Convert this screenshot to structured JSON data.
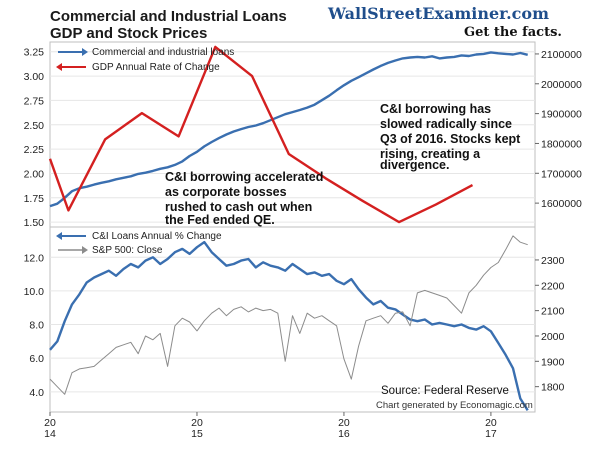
{
  "header": {
    "title_line1": "Commercial and Industrial Loans",
    "title_line2": "GDP and Stock Prices",
    "brand": "WallStreetExaminer.com",
    "tagline": "Get the facts."
  },
  "colors": {
    "blue": "#3a6fb0",
    "red": "#d42020",
    "gray": "#8c8c8c",
    "frame": "#bfbfbf"
  },
  "chart_data": [
    {
      "type": "line",
      "legend": [
        "Commercial and industrial loans",
        "GDP Annual Rate of Change"
      ],
      "left_axis": {
        "ylim": [
          1.45,
          3.35
        ],
        "ticks": [
          "1.50",
          "1.75",
          "2.00",
          "2.25",
          "2.50",
          "2.75",
          "3.00",
          "3.25"
        ]
      },
      "right_axis": {
        "ylim": [
          1520000,
          2140000
        ],
        "ticks": [
          "1600000",
          "1700000",
          "1800000",
          "1900000",
          "2000000",
          "2100000"
        ]
      },
      "xlim": [
        2014.0,
        2017.3
      ],
      "series": [
        {
          "name": "Commercial and industrial loans",
          "axis": "right",
          "color": "#3a6fb0",
          "x": [
            2014.0,
            2014.05,
            2014.1,
            2014.15,
            2014.2,
            2014.25,
            2014.3,
            2014.35,
            2014.4,
            2014.45,
            2014.5,
            2014.55,
            2014.6,
            2014.65,
            2014.7,
            2014.75,
            2014.8,
            2014.85,
            2014.9,
            2014.95,
            2015.0,
            2015.05,
            2015.1,
            2015.15,
            2015.2,
            2015.25,
            2015.3,
            2015.35,
            2015.4,
            2015.45,
            2015.5,
            2015.55,
            2015.6,
            2015.65,
            2015.7,
            2015.75,
            2015.8,
            2015.85,
            2015.9,
            2015.95,
            2016.0,
            2016.05,
            2016.1,
            2016.15,
            2016.2,
            2016.25,
            2016.3,
            2016.35,
            2016.4,
            2016.45,
            2016.5,
            2016.55,
            2016.6,
            2016.65,
            2016.7,
            2016.75,
            2016.8,
            2016.85,
            2016.9,
            2016.95,
            2017.0,
            2017.05,
            2017.1,
            2017.15,
            2017.2,
            2017.25
          ],
          "values": [
            1590000,
            1598000,
            1618000,
            1640000,
            1650000,
            1655000,
            1662000,
            1668000,
            1673000,
            1680000,
            1685000,
            1690000,
            1698000,
            1702000,
            1708000,
            1715000,
            1720000,
            1728000,
            1740000,
            1758000,
            1772000,
            1790000,
            1805000,
            1818000,
            1830000,
            1840000,
            1848000,
            1855000,
            1860000,
            1868000,
            1878000,
            1888000,
            1898000,
            1905000,
            1912000,
            1920000,
            1930000,
            1945000,
            1960000,
            1978000,
            1995000,
            2010000,
            2022000,
            2035000,
            2048000,
            2060000,
            2070000,
            2078000,
            2085000,
            2088000,
            2090000,
            2088000,
            2092000,
            2085000,
            2088000,
            2090000,
            2095000,
            2093000,
            2098000,
            2100000,
            2105000,
            2102000,
            2100000,
            2098000,
            2103000,
            2097000
          ]
        },
        {
          "name": "GDP Annual Rate of Change",
          "axis": "left",
          "color": "#d42020",
          "x": [
            2014.0,
            2014.125,
            2014.375,
            2014.625,
            2014.875,
            2015.125,
            2015.375,
            2015.625,
            2015.875,
            2016.125,
            2016.375,
            2016.625,
            2016.875
          ],
          "values": [
            2.15,
            1.62,
            2.35,
            2.62,
            2.38,
            3.3,
            3.0,
            2.2,
            1.95,
            1.72,
            1.5,
            1.68,
            1.88
          ]
        }
      ]
    },
    {
      "type": "line",
      "legend": [
        "C&I Loans Annual % Change",
        "S&P 500: Close"
      ],
      "left_axis": {
        "ylim": [
          2.8,
          13.8
        ],
        "ticks": [
          "4.0",
          "6.0",
          "8.0",
          "10.0",
          "12.0"
        ]
      },
      "right_axis": {
        "ylim": [
          1700,
          2430
        ],
        "ticks": [
          "1800",
          "1900",
          "2000",
          "2100",
          "2200",
          "2300"
        ]
      },
      "xlim": [
        2014.0,
        2017.3
      ],
      "x_tick_top": [
        "20",
        "20",
        "20",
        "20"
      ],
      "x_tick_bottom": [
        "14",
        "15",
        "16",
        "17"
      ],
      "series": [
        {
          "name": "C&I Loans Annual % Change",
          "axis": "left",
          "color": "#3a6fb0",
          "x": [
            2014.0,
            2014.05,
            2014.1,
            2014.15,
            2014.2,
            2014.25,
            2014.3,
            2014.35,
            2014.4,
            2014.45,
            2014.5,
            2014.55,
            2014.6,
            2014.65,
            2014.7,
            2014.75,
            2014.8,
            2014.85,
            2014.9,
            2014.95,
            2015.0,
            2015.05,
            2015.1,
            2015.15,
            2015.2,
            2015.25,
            2015.3,
            2015.35,
            2015.4,
            2015.45,
            2015.5,
            2015.55,
            2015.6,
            2015.65,
            2015.7,
            2015.75,
            2015.8,
            2015.85,
            2015.9,
            2015.95,
            2016.0,
            2016.05,
            2016.1,
            2016.15,
            2016.2,
            2016.25,
            2016.3,
            2016.35,
            2016.4,
            2016.45,
            2016.5,
            2016.55,
            2016.6,
            2016.65,
            2016.7,
            2016.75,
            2016.8,
            2016.85,
            2016.9,
            2016.95,
            2017.0,
            2017.05,
            2017.1,
            2017.15,
            2017.2,
            2017.25
          ],
          "values": [
            6.5,
            7.0,
            8.2,
            9.2,
            9.8,
            10.5,
            10.8,
            11.0,
            11.2,
            10.9,
            11.3,
            11.6,
            11.4,
            11.8,
            12.0,
            11.6,
            11.9,
            12.3,
            12.5,
            12.2,
            12.6,
            12.9,
            12.3,
            11.9,
            11.5,
            11.6,
            11.8,
            11.9,
            11.4,
            11.7,
            11.5,
            11.4,
            11.2,
            11.6,
            11.3,
            11.0,
            11.1,
            10.9,
            11.0,
            10.6,
            10.4,
            10.7,
            10.1,
            9.6,
            9.2,
            9.4,
            9.0,
            8.9,
            8.6,
            8.3,
            8.2,
            8.3,
            8.0,
            8.1,
            8.0,
            7.9,
            8.0,
            7.8,
            7.7,
            7.9,
            7.6,
            6.9,
            6.2,
            5.4,
            3.6,
            2.9
          ]
        },
        {
          "name": "S&P 500: Close",
          "axis": "right",
          "color": "#8c8c8c",
          "x": [
            2014.0,
            2014.05,
            2014.1,
            2014.15,
            2014.2,
            2014.25,
            2014.3,
            2014.35,
            2014.4,
            2014.45,
            2014.5,
            2014.55,
            2014.6,
            2014.65,
            2014.7,
            2014.75,
            2014.8,
            2014.85,
            2014.9,
            2014.95,
            2015.0,
            2015.05,
            2015.1,
            2015.15,
            2015.2,
            2015.25,
            2015.3,
            2015.35,
            2015.4,
            2015.45,
            2015.5,
            2015.55,
            2015.6,
            2015.65,
            2015.7,
            2015.75,
            2015.8,
            2015.85,
            2015.9,
            2015.95,
            2016.0,
            2016.05,
            2016.1,
            2016.15,
            2016.2,
            2016.25,
            2016.3,
            2016.35,
            2016.4,
            2016.45,
            2016.5,
            2016.55,
            2016.6,
            2016.65,
            2016.7,
            2016.75,
            2016.8,
            2016.85,
            2016.9,
            2016.95,
            2017.0,
            2017.05,
            2017.1,
            2017.15,
            2017.2,
            2017.25
          ],
          "values": [
            1830,
            1800,
            1770,
            1855,
            1870,
            1875,
            1880,
            1905,
            1930,
            1955,
            1965,
            1975,
            1930,
            2000,
            1985,
            2010,
            1880,
            2040,
            2070,
            2055,
            2020,
            2060,
            2090,
            2110,
            2080,
            2105,
            2115,
            2095,
            2110,
            2100,
            2105,
            2090,
            1900,
            2080,
            2010,
            2090,
            2070,
            2080,
            2060,
            2040,
            1910,
            1830,
            1960,
            2060,
            2070,
            2080,
            2050,
            2090,
            2095,
            2040,
            2170,
            2180,
            2170,
            2160,
            2150,
            2120,
            2090,
            2170,
            2200,
            2240,
            2270,
            2290,
            2340,
            2395,
            2370,
            2360
          ]
        }
      ]
    }
  ],
  "annotations": {
    "a1": [
      "C&I borrowing has",
      "slowed radically since",
      "Q3 of 2016. Stocks kept",
      "rising, creating a",
      "divergence."
    ],
    "a2": [
      "C&I borrowing accelerated",
      "as corporate bosses",
      "rushed to cash out when",
      "the Fed ended QE."
    ]
  },
  "source": "Source: Federal Reserve",
  "credit": "Chart generated by Economagic.com"
}
